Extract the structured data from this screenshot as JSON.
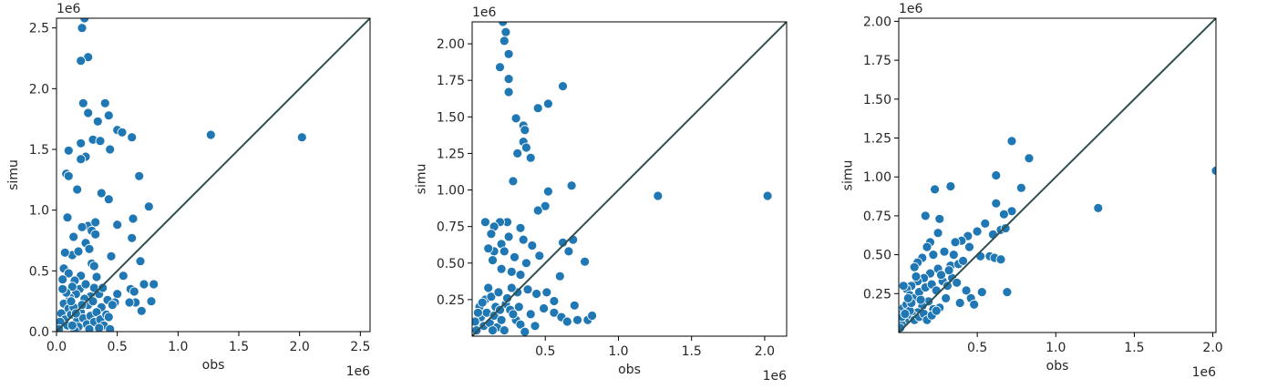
{
  "chart_data": [
    {
      "type": "scatter",
      "xlabel": "obs",
      "ylabel": "simu",
      "x_offset_label": "1e6",
      "y_offset_label": "1e6",
      "xlim": [
        0,
        2.58
      ],
      "ylim": [
        0,
        2.58
      ],
      "x_ticks": [
        0,
        0.5,
        1.0,
        1.5,
        2.0,
        2.5
      ],
      "x_tick_labels": [
        "0.0",
        "0.5",
        "1.0",
        "1.5",
        "2.0",
        "2.5"
      ],
      "y_ticks": [
        0,
        0.5,
        1.0,
        1.5,
        2.0,
        2.5
      ],
      "y_tick_labels": [
        "0.0",
        "0.5",
        "1.0",
        "1.5",
        "2.0",
        "2.5"
      ],
      "diagonal": true,
      "point_color": "#1f77b4",
      "line_color": "#2f4f4f",
      "points": [
        [
          0.23,
          2.58
        ],
        [
          0.21,
          2.5
        ],
        [
          0.26,
          2.26
        ],
        [
          0.2,
          2.23
        ],
        [
          0.22,
          1.88
        ],
        [
          0.26,
          1.8
        ],
        [
          0.34,
          1.73
        ],
        [
          0.4,
          1.88
        ],
        [
          0.43,
          1.78
        ],
        [
          1.27,
          1.62
        ],
        [
          2.02,
          1.6
        ],
        [
          0.62,
          1.6
        ],
        [
          0.5,
          1.66
        ],
        [
          0.54,
          1.64
        ],
        [
          0.3,
          1.58
        ],
        [
          0.36,
          1.57
        ],
        [
          0.2,
          1.55
        ],
        [
          0.24,
          1.44
        ],
        [
          0.2,
          1.42
        ],
        [
          0.1,
          1.49
        ],
        [
          0.44,
          1.5
        ],
        [
          0.08,
          1.3
        ],
        [
          0.1,
          1.28
        ],
        [
          0.68,
          1.28
        ],
        [
          0.37,
          1.14
        ],
        [
          0.17,
          1.17
        ],
        [
          0.43,
          1.09
        ],
        [
          0.76,
          1.03
        ],
        [
          0.09,
          0.94
        ],
        [
          0.26,
          0.87
        ],
        [
          0.32,
          0.9
        ],
        [
          0.29,
          0.83
        ],
        [
          0.63,
          0.93
        ],
        [
          0.5,
          0.88
        ],
        [
          0.21,
          0.86
        ],
        [
          0.14,
          0.78
        ],
        [
          0.32,
          0.8
        ],
        [
          0.24,
          0.73
        ],
        [
          0.62,
          0.77
        ],
        [
          0.13,
          0.63
        ],
        [
          0.07,
          0.65
        ],
        [
          0.18,
          0.66
        ],
        [
          0.29,
          0.56
        ],
        [
          0.45,
          0.62
        ],
        [
          0.27,
          0.68
        ],
        [
          0.06,
          0.52
        ],
        [
          0.1,
          0.48
        ],
        [
          0.2,
          0.46
        ],
        [
          0.15,
          0.42
        ],
        [
          0.33,
          0.45
        ],
        [
          0.31,
          0.54
        ],
        [
          0.69,
          0.58
        ],
        [
          0.55,
          0.46
        ],
        [
          0.61,
          0.35
        ],
        [
          0.64,
          0.33
        ],
        [
          0.8,
          0.39
        ],
        [
          0.72,
          0.39
        ],
        [
          0.78,
          0.25
        ],
        [
          0.7,
          0.17
        ],
        [
          0.65,
          0.24
        ],
        [
          0.6,
          0.24
        ],
        [
          0.5,
          0.31
        ],
        [
          0.48,
          0.24
        ],
        [
          0.42,
          0.26
        ],
        [
          0.37,
          0.2
        ],
        [
          0.35,
          0.31
        ],
        [
          0.31,
          0.36
        ],
        [
          0.28,
          0.29
        ],
        [
          0.26,
          0.22
        ],
        [
          0.23,
          0.27
        ],
        [
          0.19,
          0.35
        ],
        [
          0.16,
          0.31
        ],
        [
          0.13,
          0.37
        ],
        [
          0.11,
          0.28
        ],
        [
          0.08,
          0.32
        ],
        [
          0.06,
          0.23
        ],
        [
          0.05,
          0.35
        ],
        [
          0.04,
          0.15
        ],
        [
          0.07,
          0.1
        ],
        [
          0.1,
          0.19
        ],
        [
          0.12,
          0.14
        ],
        [
          0.14,
          0.2
        ],
        [
          0.17,
          0.09
        ],
        [
          0.2,
          0.16
        ],
        [
          0.22,
          0.11
        ],
        [
          0.25,
          0.06
        ],
        [
          0.28,
          0.13
        ],
        [
          0.31,
          0.08
        ],
        [
          0.33,
          0.16
        ],
        [
          0.36,
          0.1
        ],
        [
          0.39,
          0.05
        ],
        [
          0.41,
          0.14
        ],
        [
          0.44,
          0.02
        ],
        [
          0.18,
          0.04
        ],
        [
          0.15,
          0.01
        ],
        [
          0.09,
          0.05
        ],
        [
          0.03,
          0.08
        ],
        [
          0.02,
          0.02
        ],
        [
          0.12,
          0.25
        ],
        [
          0.05,
          0.43
        ],
        [
          0.24,
          0.39
        ],
        [
          0.46,
          0.22
        ],
        [
          0.38,
          0.36
        ],
        [
          0.27,
          0.02
        ],
        [
          0.21,
          0.22
        ],
        [
          0.16,
          0.15
        ],
        [
          0.13,
          0.05
        ],
        [
          0.3,
          0.25
        ],
        [
          0.43,
          0.12
        ],
        [
          0.35,
          0.03
        ]
      ]
    },
    {
      "type": "scatter",
      "xlabel": "obs",
      "ylabel": "simu",
      "x_offset_label": "1e6",
      "y_offset_label": "1e6",
      "xlim": [
        0,
        2.15
      ],
      "ylim": [
        0,
        2.15
      ],
      "x_ticks": [
        0.5,
        1.0,
        1.5,
        2.0
      ],
      "x_tick_labels": [
        "0.5",
        "1.0",
        "1.5",
        "2.0"
      ],
      "y_ticks": [
        0.25,
        0.5,
        0.75,
        1.0,
        1.25,
        1.5,
        1.75,
        2.0
      ],
      "y_tick_labels": [
        "0.25",
        "0.50",
        "0.75",
        "1.00",
        "1.25",
        "1.50",
        "1.75",
        "2.00"
      ],
      "diagonal": true,
      "point_color": "#1f77b4",
      "line_color": "#2f4f4f",
      "points": [
        [
          0.21,
          2.15
        ],
        [
          0.23,
          2.08
        ],
        [
          0.22,
          2.02
        ],
        [
          0.25,
          1.93
        ],
        [
          0.19,
          1.84
        ],
        [
          0.25,
          1.76
        ],
        [
          0.25,
          1.67
        ],
        [
          0.62,
          1.71
        ],
        [
          0.52,
          1.59
        ],
        [
          0.45,
          1.56
        ],
        [
          0.3,
          1.49
        ],
        [
          0.35,
          1.44
        ],
        [
          0.36,
          1.41
        ],
        [
          0.35,
          1.33
        ],
        [
          0.37,
          1.29
        ],
        [
          0.31,
          1.25
        ],
        [
          0.4,
          1.22
        ],
        [
          0.28,
          1.06
        ],
        [
          0.68,
          1.03
        ],
        [
          0.52,
          0.99
        ],
        [
          1.27,
          0.96
        ],
        [
          2.02,
          0.96
        ],
        [
          0.5,
          0.89
        ],
        [
          0.45,
          0.86
        ],
        [
          0.24,
          0.78
        ],
        [
          0.19,
          0.78
        ],
        [
          0.09,
          0.78
        ],
        [
          0.33,
          0.74
        ],
        [
          0.15,
          0.75
        ],
        [
          0.13,
          0.7
        ],
        [
          0.2,
          0.63
        ],
        [
          0.25,
          0.68
        ],
        [
          0.62,
          0.64
        ],
        [
          0.69,
          0.66
        ],
        [
          0.66,
          0.58
        ],
        [
          0.35,
          0.66
        ],
        [
          0.41,
          0.62
        ],
        [
          0.22,
          0.58
        ],
        [
          0.15,
          0.58
        ],
        [
          0.11,
          0.6
        ],
        [
          0.29,
          0.54
        ],
        [
          0.37,
          0.5
        ],
        [
          0.46,
          0.55
        ],
        [
          0.77,
          0.51
        ],
        [
          0.14,
          0.52
        ],
        [
          0.2,
          0.46
        ],
        [
          0.27,
          0.44
        ],
        [
          0.33,
          0.42
        ],
        [
          0.6,
          0.41
        ],
        [
          0.31,
          0.3
        ],
        [
          0.38,
          0.32
        ],
        [
          0.44,
          0.29
        ],
        [
          0.51,
          0.3
        ],
        [
          0.56,
          0.24
        ],
        [
          0.49,
          0.19
        ],
        [
          0.56,
          0.16
        ],
        [
          0.61,
          0.13
        ],
        [
          0.7,
          0.21
        ],
        [
          0.65,
          0.1
        ],
        [
          0.72,
          0.11
        ],
        [
          0.79,
          0.11
        ],
        [
          0.82,
          0.14
        ],
        [
          0.09,
          0.25
        ],
        [
          0.13,
          0.27
        ],
        [
          0.18,
          0.3
        ],
        [
          0.23,
          0.22
        ],
        [
          0.27,
          0.33
        ],
        [
          0.05,
          0.2
        ],
        [
          0.06,
          0.13
        ],
        [
          0.08,
          0.07
        ],
        [
          0.1,
          0.16
        ],
        [
          0.12,
          0.09
        ],
        [
          0.15,
          0.14
        ],
        [
          0.17,
          0.06
        ],
        [
          0.2,
          0.11
        ],
        [
          0.22,
          0.04
        ],
        [
          0.26,
          0.18
        ],
        [
          0.3,
          0.11
        ],
        [
          0.33,
          0.08
        ],
        [
          0.36,
          0.03
        ],
        [
          0.4,
          0.15
        ],
        [
          0.43,
          0.07
        ],
        [
          0.02,
          0.1
        ],
        [
          0.03,
          0.04
        ],
        [
          0.07,
          0.23
        ],
        [
          0.11,
          0.33
        ],
        [
          0.16,
          0.2
        ],
        [
          0.24,
          0.26
        ],
        [
          0.28,
          0.15
        ],
        [
          0.14,
          0.04
        ],
        [
          0.19,
          0.18
        ],
        [
          0.32,
          0.2
        ],
        [
          0.04,
          0.16
        ]
      ]
    },
    {
      "type": "scatter",
      "xlabel": "obs",
      "ylabel": "simu",
      "x_offset_label": "1e6",
      "y_offset_label": "1e6",
      "xlim": [
        0,
        2.02
      ],
      "ylim": [
        0,
        2.02
      ],
      "x_ticks": [
        0.5,
        1.0,
        1.5,
        2.0
      ],
      "x_tick_labels": [
        "0.5",
        "1.0",
        "1.5",
        "2.0"
      ],
      "y_ticks": [
        0.25,
        0.5,
        0.75,
        1.0,
        1.25,
        1.5,
        1.75,
        2.0
      ],
      "y_tick_labels": [
        "0.25",
        "0.50",
        "0.75",
        "1.00",
        "1.25",
        "1.50",
        "1.75",
        "2.00"
      ],
      "diagonal": true,
      "point_color": "#1f77b4",
      "line_color": "#2f4f4f",
      "points": [
        [
          0.72,
          1.23
        ],
        [
          0.83,
          1.12
        ],
        [
          0.62,
          1.01
        ],
        [
          0.78,
          0.93
        ],
        [
          0.23,
          0.92
        ],
        [
          0.33,
          0.94
        ],
        [
          0.62,
          0.83
        ],
        [
          0.72,
          0.78
        ],
        [
          1.27,
          0.8
        ],
        [
          2.02,
          1.04
        ],
        [
          0.67,
          0.76
        ],
        [
          0.65,
          0.66
        ],
        [
          0.6,
          0.63
        ],
        [
          0.68,
          0.67
        ],
        [
          0.55,
          0.7
        ],
        [
          0.5,
          0.65
        ],
        [
          0.44,
          0.62
        ],
        [
          0.4,
          0.59
        ],
        [
          0.17,
          0.75
        ],
        [
          0.26,
          0.73
        ],
        [
          0.25,
          0.64
        ],
        [
          0.2,
          0.58
        ],
        [
          0.36,
          0.58
        ],
        [
          0.18,
          0.55
        ],
        [
          0.45,
          0.55
        ],
        [
          0.52,
          0.49
        ],
        [
          0.58,
          0.49
        ],
        [
          0.61,
          0.48
        ],
        [
          0.65,
          0.47
        ],
        [
          0.35,
          0.5
        ],
        [
          0.29,
          0.52
        ],
        [
          0.22,
          0.5
        ],
        [
          0.15,
          0.48
        ],
        [
          0.12,
          0.45
        ],
        [
          0.1,
          0.42
        ],
        [
          0.33,
          0.43
        ],
        [
          0.38,
          0.44
        ],
        [
          0.41,
          0.46
        ],
        [
          0.25,
          0.41
        ],
        [
          0.2,
          0.38
        ],
        [
          0.16,
          0.35
        ],
        [
          0.12,
          0.33
        ],
        [
          0.08,
          0.3
        ],
        [
          0.05,
          0.28
        ],
        [
          0.03,
          0.3
        ],
        [
          0.07,
          0.24
        ],
        [
          0.1,
          0.22
        ],
        [
          0.13,
          0.26
        ],
        [
          0.17,
          0.29
        ],
        [
          0.21,
          0.31
        ],
        [
          0.24,
          0.27
        ],
        [
          0.28,
          0.33
        ],
        [
          0.31,
          0.3
        ],
        [
          0.34,
          0.35
        ],
        [
          0.37,
          0.32
        ],
        [
          0.43,
          0.27
        ],
        [
          0.46,
          0.22
        ],
        [
          0.53,
          0.26
        ],
        [
          0.69,
          0.26
        ],
        [
          0.48,
          0.18
        ],
        [
          0.39,
          0.19
        ],
        [
          0.3,
          0.22
        ],
        [
          0.26,
          0.16
        ],
        [
          0.22,
          0.15
        ],
        [
          0.19,
          0.2
        ],
        [
          0.15,
          0.17
        ],
        [
          0.12,
          0.13
        ],
        [
          0.09,
          0.11
        ],
        [
          0.06,
          0.09
        ],
        [
          0.04,
          0.07
        ],
        [
          0.02,
          0.05
        ],
        [
          0.01,
          0.13
        ],
        [
          0.03,
          0.16
        ],
        [
          0.05,
          0.18
        ],
        [
          0.07,
          0.14
        ],
        [
          0.1,
          0.08
        ],
        [
          0.13,
          0.1
        ],
        [
          0.16,
          0.12
        ],
        [
          0.18,
          0.08
        ],
        [
          0.21,
          0.11
        ],
        [
          0.24,
          0.14
        ],
        [
          0.01,
          0.03
        ],
        [
          0.02,
          0.1
        ],
        [
          0.08,
          0.19
        ],
        [
          0.14,
          0.21
        ],
        [
          0.11,
          0.36
        ],
        [
          0.06,
          0.22
        ],
        [
          0.27,
          0.37
        ],
        [
          0.32,
          0.4
        ],
        [
          0.04,
          0.12
        ]
      ]
    }
  ]
}
